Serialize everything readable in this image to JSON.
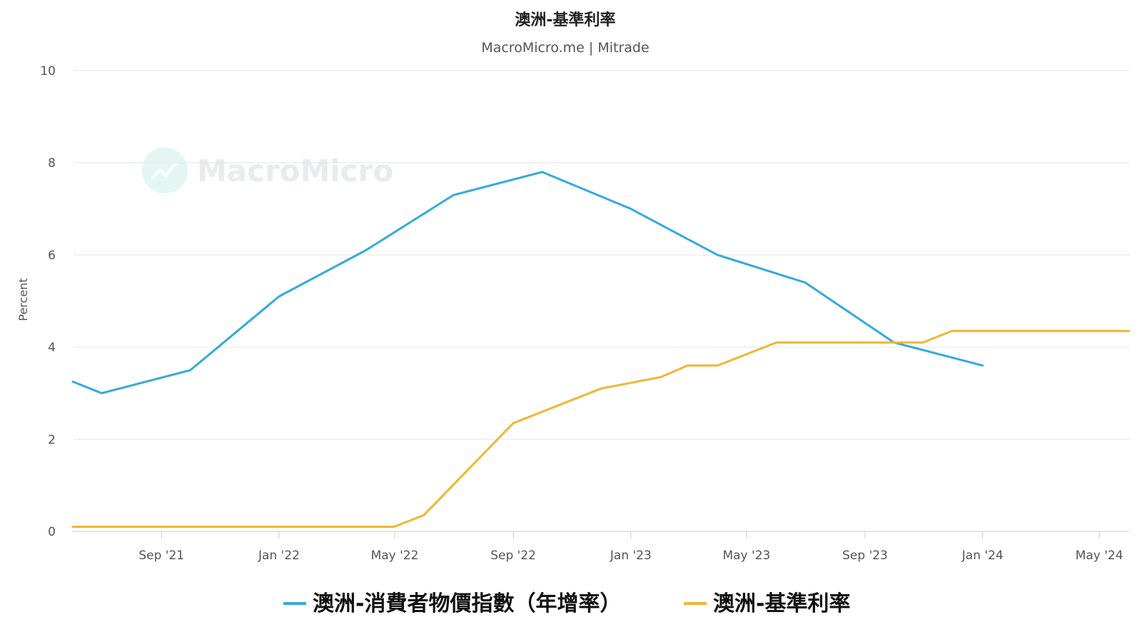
{
  "chart_data": {
    "type": "line",
    "title": "澳洲-基準利率",
    "subtitle": "MacroMicro.me | Mitrade",
    "watermark": "MacroMicro",
    "ylabel": "Percent",
    "xlabel": "",
    "ylim": [
      0,
      10
    ],
    "yticks": [
      "0",
      "2",
      "4",
      "6",
      "8",
      "10"
    ],
    "xlim": [
      "2021-06-01",
      "2024-06-01"
    ],
    "xticks": [
      {
        "date": "2021-09-01",
        "label": "Sep '21"
      },
      {
        "date": "2022-01-01",
        "label": "Jan '22"
      },
      {
        "date": "2022-05-01",
        "label": "May '22"
      },
      {
        "date": "2022-09-01",
        "label": "Sep '22"
      },
      {
        "date": "2023-01-01",
        "label": "Jan '23"
      },
      {
        "date": "2023-05-01",
        "label": "May '23"
      },
      {
        "date": "2023-09-01",
        "label": "Sep '23"
      },
      {
        "date": "2024-01-01",
        "label": "Jan '24"
      },
      {
        "date": "2024-05-01",
        "label": "May '24"
      }
    ],
    "grid": true,
    "legend_position": "bottom",
    "series": [
      {
        "name": "澳洲-消費者物價指數（年增率）",
        "color": "#35aadc",
        "points": [
          [
            "2021-06-01",
            3.25
          ],
          [
            "2021-07-01",
            3.0
          ],
          [
            "2021-10-01",
            3.5
          ],
          [
            "2022-01-01",
            5.1
          ],
          [
            "2022-04-01",
            6.1
          ],
          [
            "2022-07-01",
            7.3
          ],
          [
            "2022-10-01",
            7.8
          ],
          [
            "2023-01-01",
            7.0
          ],
          [
            "2023-04-01",
            6.0
          ],
          [
            "2023-07-01",
            5.4
          ],
          [
            "2023-10-01",
            4.1
          ],
          [
            "2024-01-01",
            3.6
          ]
        ]
      },
      {
        "name": "澳洲-基準利率",
        "color": "#f1b634",
        "points": [
          [
            "2021-06-01",
            0.1
          ],
          [
            "2022-04-30",
            0.1
          ],
          [
            "2022-05-31",
            0.35
          ],
          [
            "2022-09-01",
            2.35
          ],
          [
            "2022-12-01",
            3.1
          ],
          [
            "2023-02-01",
            3.35
          ],
          [
            "2023-03-01",
            3.6
          ],
          [
            "2023-04-01",
            3.6
          ],
          [
            "2023-06-01",
            4.1
          ],
          [
            "2023-10-31",
            4.1
          ],
          [
            "2023-11-30",
            4.35
          ],
          [
            "2024-06-01",
            4.35
          ]
        ]
      }
    ]
  }
}
